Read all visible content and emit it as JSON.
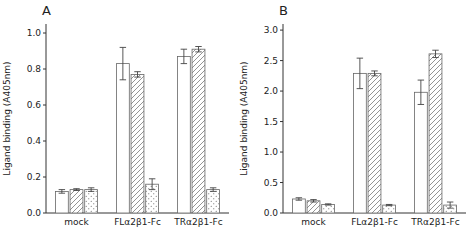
{
  "chart_data": [
    {
      "type": "bar",
      "title": "A",
      "ylabel": "Ligand binding (A405nm)",
      "categories": [
        "mock",
        "FLα2β1-Fc",
        "TRα2β1-Fc"
      ],
      "series": [
        {
          "color": "white",
          "values": [
            0.12,
            0.83,
            0.87
          ],
          "errors": [
            0.01,
            0.09,
            0.04
          ]
        },
        {
          "color": "white",
          "values": [
            0.13,
            0.77,
            0.91
          ],
          "errors": [
            0.005,
            0.015,
            0.015
          ]
        },
        {
          "color": "white",
          "values": [
            0.13,
            0.16,
            0.13
          ],
          "errors": [
            0.01,
            0.03,
            0.01
          ]
        }
      ],
      "ylim": [
        0.0,
        1.05
      ],
      "yticks": [
        {
          "value": 0.0,
          "label": "0.0"
        },
        0.2,
        0.4,
        0.6,
        0.8,
        {
          "value": 1.0,
          "label": "1.0"
        }
      ]
    },
    {
      "type": "bar",
      "title": "B",
      "ylabel": "Ligand binding (A405nm)",
      "categories": [
        "mock",
        "FLα2β1-Fc",
        "TRα2β1-Fc"
      ],
      "series": [
        {
          "color": "white",
          "values": [
            0.23,
            2.29,
            1.98
          ],
          "errors": [
            0.02,
            0.25,
            0.2
          ]
        },
        {
          "color": "white",
          "values": [
            0.2,
            2.29,
            2.61
          ],
          "errors": [
            0.02,
            0.04,
            0.06
          ]
        },
        {
          "color": "white",
          "values": [
            0.14,
            0.13,
            0.13
          ],
          "errors": [
            0.01,
            0.01,
            0.05
          ]
        }
      ],
      "ylim": [
        0.0,
        3.1
      ],
      "yticks": [
        {
          "value": 0.0,
          "label": "0.0"
        },
        0.5,
        {
          "value": 1.0,
          "label": "1.0"
        },
        1.5,
        {
          "value": 2.0,
          "label": "2.0"
        },
        2.5,
        {
          "value": 3.0,
          "label": "3.0"
        }
      ]
    }
  ]
}
